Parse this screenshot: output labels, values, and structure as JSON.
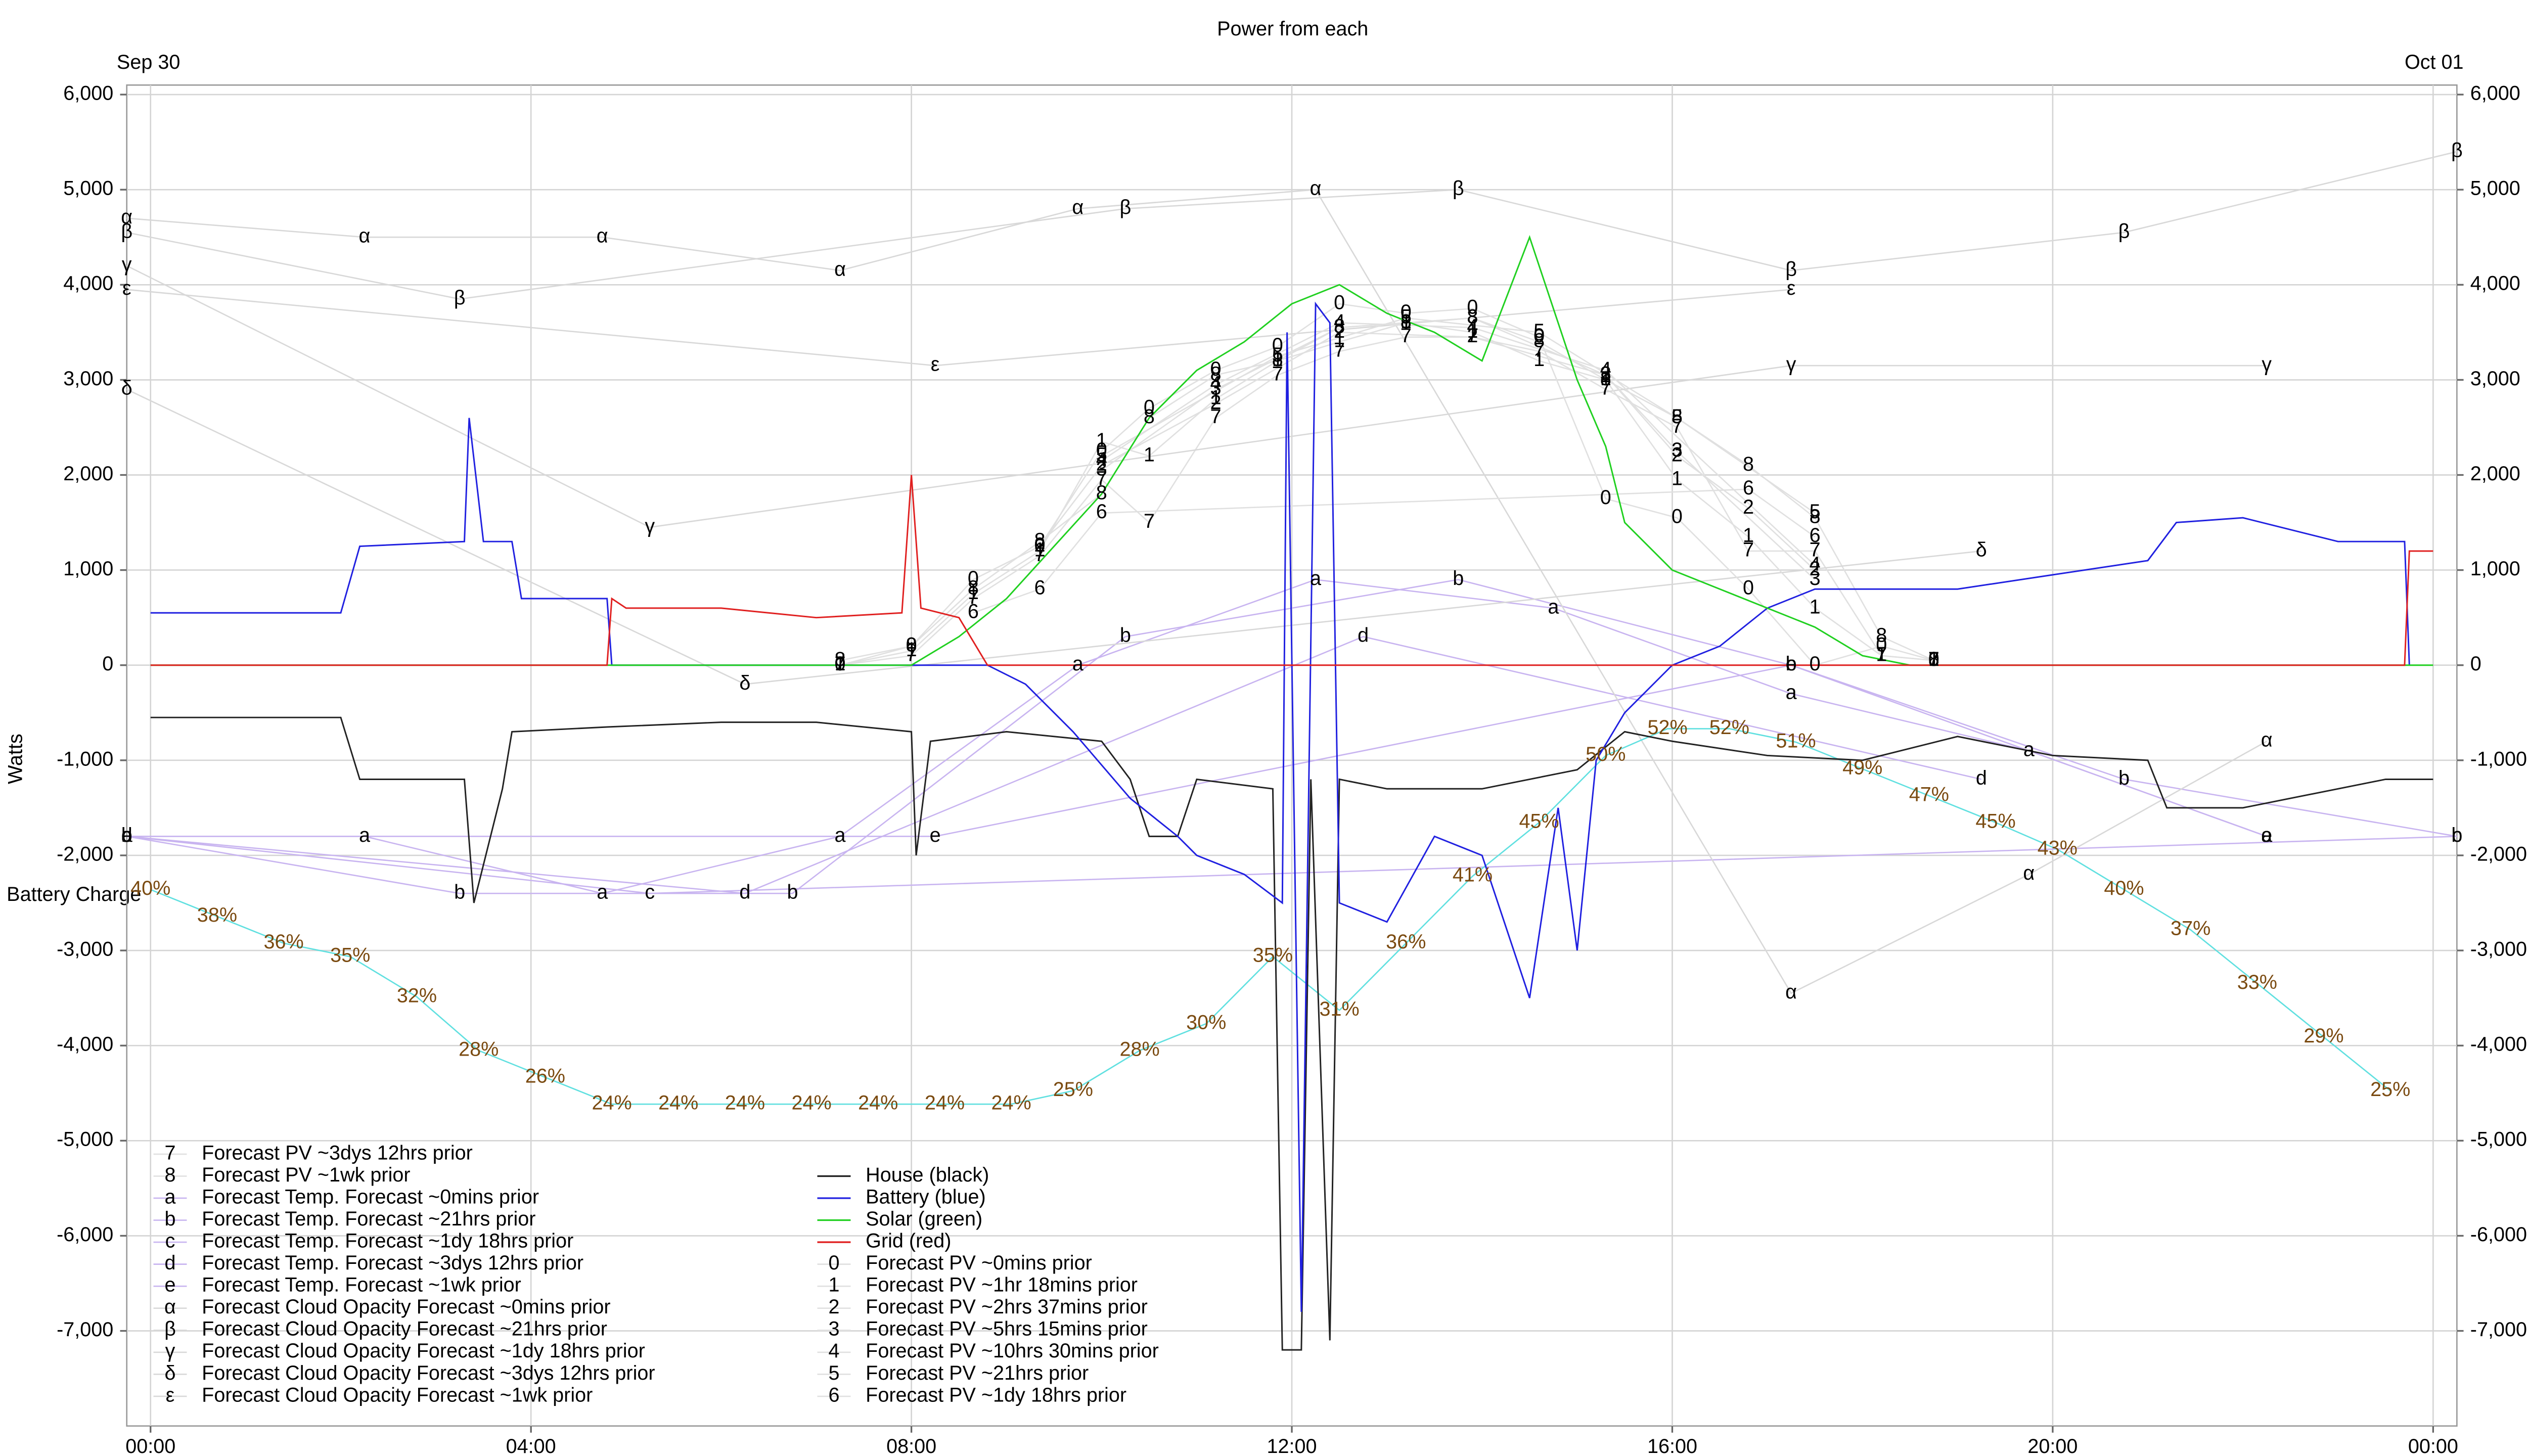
{
  "chart_data": {
    "type": "line",
    "title": "Power from each",
    "date_start": "Sep 30",
    "date_end": "Oct 01",
    "ylabel": "Watts",
    "xlim": [
      -0.25,
      24.25
    ],
    "xticks": [
      {
        "value": 0,
        "label": "00:00"
      },
      {
        "value": 4,
        "label": "04:00"
      },
      {
        "value": 8,
        "label": "08:00"
      },
      {
        "value": 12,
        "label": "12:00"
      },
      {
        "value": 16,
        "label": "16:00"
      },
      {
        "value": 20,
        "label": "20:00"
      },
      {
        "value": 24,
        "label": "00:00"
      }
    ],
    "ylim": [
      -8000,
      6100
    ],
    "yticks": [
      {
        "value": -7000,
        "label": "-7,000"
      },
      {
        "value": -6000,
        "label": "-6,000"
      },
      {
        "value": -5000,
        "label": "-5,000"
      },
      {
        "value": -4000,
        "label": "-4,000"
      },
      {
        "value": -3000,
        "label": "-3,000"
      },
      {
        "value": -2000,
        "label": "-2,000"
      },
      {
        "value": -1000,
        "label": "-1,000"
      },
      0,
      {
        "value": 1000,
        "label": "1,000"
      },
      {
        "value": 2000,
        "label": "2,000"
      },
      {
        "value": 3000,
        "label": "3,000"
      },
      {
        "value": 4000,
        "label": "4,000"
      },
      {
        "value": 5000,
        "label": "5,000"
      },
      {
        "value": 6000,
        "label": "6,000"
      }
    ],
    "grid": true,
    "series": [
      {
        "name": "Forecast PV ~3dys 12hrs prior",
        "marker": "7",
        "color": "#e0e0e0",
        "x": [
          7.25,
          8,
          8.65,
          9.35,
          10,
          10.5,
          11.2,
          11.85,
          12.5,
          13.2,
          13.9,
          14.6,
          15.3,
          16.05,
          16.8,
          17.5,
          18.2,
          18.75
        ],
        "values": [
          0,
          100,
          700,
          1150,
          1950,
          1500,
          2600,
          3050,
          3300,
          3450,
          3450,
          3300,
          2900,
          2500,
          1200,
          1200,
          100,
          50
        ]
      },
      {
        "name": "Forecast PV ~1wk prior",
        "marker": "8",
        "color": "#e0e0e0",
        "x": [
          7.25,
          8,
          8.65,
          9.35,
          10,
          10.5,
          11.2,
          11.85,
          12.5,
          13.2,
          13.9,
          14.6,
          15.3,
          16.05,
          16.8,
          17.5,
          18.2,
          18.75
        ],
        "values": [
          50,
          200,
          800,
          1300,
          1800,
          2600,
          3050,
          3200,
          3550,
          3600,
          3650,
          3400,
          3000,
          2600,
          2100,
          1550,
          300,
          50
        ]
      },
      {
        "name": "Forecast Temp. Forecast ~0mins prior",
        "marker": "a",
        "color": "#c8b4f0",
        "x": [
          -0.25,
          2.25,
          4.75,
          7.25,
          9.75,
          12.25,
          14.75,
          17.25,
          19.75,
          22.25
        ],
        "values": [
          -1800,
          -1800,
          -2400,
          -1800,
          0,
          900,
          600,
          -300,
          -900,
          -1800
        ]
      },
      {
        "name": "Forecast Temp. Forecast ~21hrs prior",
        "marker": "b",
        "color": "#c8b4f0",
        "x": [
          -0.25,
          3.25,
          6.75,
          10.25,
          13.75,
          17.25,
          20.75,
          24.25
        ],
        "values": [
          -1800,
          -2400,
          -2400,
          300,
          900,
          0,
          -1200,
          -1800
        ]
      },
      {
        "name": "Forecast Temp. Forecast ~1dy 18hrs prior",
        "marker": "c",
        "color": "#c8b4f0",
        "x": [
          -0.25,
          5.25,
          24.25
        ],
        "values": [
          -1800,
          -2400,
          -1800
        ]
      },
      {
        "name": "Forecast Temp. Forecast ~3dys 12hrs prior",
        "marker": "d",
        "color": "#c8b4f0",
        "x": [
          -0.25,
          6.25,
          12.75,
          19.25
        ],
        "values": [
          -1800,
          -2400,
          300,
          -1200
        ]
      },
      {
        "name": "Forecast Temp. Forecast ~1wk prior",
        "marker": "e",
        "color": "#c8b4f0",
        "x": [
          -0.25,
          8.25,
          17.25,
          22.25
        ],
        "values": [
          -1800,
          -1800,
          0,
          -1800
        ]
      },
      {
        "name": "Forecast Cloud Opacity Forecast ~0mins prior",
        "marker": "α",
        "color": "#d8d8d8",
        "x": [
          -0.25,
          2.25,
          4.75,
          7.25,
          9.75,
          12.25,
          17.25,
          19.75,
          22.25
        ],
        "values": [
          4700,
          4500,
          4500,
          4150,
          4800,
          5000,
          -3450,
          -2200,
          -800
        ]
      },
      {
        "name": "Forecast Cloud Opacity Forecast ~21hrs prior",
        "marker": "β",
        "color": "#d8d8d8",
        "x": [
          -0.25,
          3.25,
          10.25,
          13.75,
          17.25,
          20.75,
          24.25
        ],
        "values": [
          4550,
          3850,
          4800,
          5000,
          4150,
          4550,
          5400
        ]
      },
      {
        "name": "Forecast Cloud Opacity Forecast ~1dy 18hrs prior",
        "marker": "γ",
        "color": "#d8d8d8",
        "x": [
          -0.25,
          5.25,
          17.25,
          22.25
        ],
        "values": [
          4200,
          1450,
          3150,
          3150
        ]
      },
      {
        "name": "Forecast Cloud Opacity Forecast ~3dys 12hrs prior",
        "marker": "δ",
        "color": "#d8d8d8",
        "x": [
          -0.25,
          6.25,
          19.25
        ],
        "values": [
          2900,
          -200,
          1200
        ]
      },
      {
        "name": "Forecast Cloud Opacity Forecast ~1wk prior",
        "marker": "ε",
        "color": "#d8d8d8",
        "x": [
          -0.25,
          8.25,
          17.25
        ],
        "values": [
          3950,
          3150,
          3950
        ]
      },
      {
        "name": "House (black)",
        "color": "#222222",
        "x": [
          0,
          2,
          2.2,
          3.3,
          3.4,
          3.7,
          3.8,
          4.8,
          6,
          7,
          8,
          8.05,
          8.2,
          9,
          10,
          10.3,
          10.5,
          10.8,
          11,
          11.8,
          11.9,
          12.1,
          12.2,
          12.4,
          12.5,
          13,
          14,
          15,
          15.5,
          16,
          17,
          18,
          19,
          20,
          21,
          21.2,
          22,
          23,
          23.5,
          24
        ],
        "values": [
          -550,
          -550,
          -1200,
          -1200,
          -2500,
          -1300,
          -700,
          -650,
          -600,
          -600,
          -700,
          -2000,
          -800,
          -700,
          -800,
          -1200,
          -1800,
          -1800,
          -1200,
          -1300,
          -7200,
          -7200,
          -1200,
          -7100,
          -1200,
          -1300,
          -1300,
          -1100,
          -700,
          -800,
          -950,
          -1000,
          -750,
          -950,
          -1000,
          -1500,
          -1500,
          -1300,
          -1200,
          -1200
        ]
      },
      {
        "name": "Battery (blue)",
        "color": "#2020e0",
        "x": [
          0,
          2,
          2.2,
          3.3,
          3.35,
          3.5,
          3.8,
          3.9,
          4.8,
          4.85,
          8,
          8.8,
          9.2,
          9.7,
          10.3,
          10.8,
          11,
          11.5,
          11.9,
          11.95,
          12.1,
          12.25,
          12.4,
          12.5,
          13,
          13.5,
          14,
          14.5,
          14.8,
          15,
          15.2,
          15.5,
          16,
          16.5,
          17,
          17.5,
          18,
          19,
          20,
          21,
          21.3,
          22,
          23,
          23.7,
          23.75
        ],
        "values": [
          550,
          550,
          1250,
          1300,
          2600,
          1300,
          1300,
          700,
          700,
          0,
          0,
          0,
          -200,
          -700,
          -1400,
          -1800,
          -2000,
          -2200,
          -2500,
          3500,
          -6800,
          3800,
          3600,
          -2500,
          -2700,
          -1800,
          -2000,
          -3500,
          -1500,
          -3000,
          -1000,
          -500,
          0,
          200,
          600,
          800,
          800,
          800,
          950,
          1100,
          1500,
          1550,
          1300,
          1300,
          0
        ]
      },
      {
        "name": "Solar (green)",
        "color": "#20d020",
        "x": [
          0,
          8,
          8.5,
          9,
          10,
          10.5,
          11,
          11.5,
          12,
          12.5,
          13,
          13.5,
          14,
          14.5,
          15,
          15.3,
          15.5,
          16,
          16.5,
          17,
          17.5,
          18,
          18.5,
          24
        ],
        "values": [
          0,
          0,
          300,
          700,
          1800,
          2600,
          3100,
          3400,
          3800,
          4000,
          3700,
          3500,
          3200,
          4500,
          3000,
          2300,
          1500,
          1000,
          800,
          600,
          400,
          100,
          0,
          0
        ]
      },
      {
        "name": "Grid (red)",
        "color": "#e02020",
        "x": [
          0,
          4.8,
          4.85,
          5,
          6,
          7,
          7.9,
          8,
          8.1,
          8.5,
          8.8,
          23.7,
          23.75,
          24
        ],
        "values": [
          0,
          0,
          700,
          600,
          600,
          500,
          550,
          2000,
          600,
          500,
          0,
          0,
          1200,
          1200
        ]
      },
      {
        "name": "Forecast PV ~0mins prior",
        "marker": "0",
        "color": "#e0e0e0",
        "x": [
          7.25,
          8,
          8.65,
          9.35,
          10,
          10.5,
          11.2,
          11.85,
          12.5,
          13.2,
          13.9,
          14.6,
          15.3,
          16.05,
          16.8,
          17.5,
          18.2,
          18.75
        ],
        "values": [
          0,
          200,
          900,
          1250,
          2250,
          2700,
          3100,
          3350,
          3800,
          3700,
          3750,
          3450,
          1750,
          1550,
          800,
          0,
          200,
          50
        ]
      },
      {
        "name": "Forecast PV ~1hr 18mins prior",
        "marker": "1",
        "color": "#e0e0e0",
        "x": [
          7.25,
          8,
          8.65,
          9.35,
          10,
          10.5,
          11.2,
          11.85,
          12.5,
          13.2,
          13.9,
          14.6,
          15.3,
          16.05,
          16.8,
          17.5,
          18.2,
          18.75
        ],
        "values": [
          0,
          150,
          750,
          1200,
          2350,
          2200,
          2800,
          3200,
          3400,
          3600,
          3500,
          3200,
          3000,
          1950,
          1350,
          600,
          100,
          50
        ]
      },
      {
        "name": "Forecast PV ~2hrs 37mins prior",
        "marker": "2",
        "color": "#e0e0e0",
        "x": [
          9.35,
          10,
          11.2,
          12.5,
          13.9,
          15.3,
          16.05,
          16.8,
          17.5
        ],
        "values": [
          1250,
          2100,
          2750,
          3500,
          3450,
          3050,
          2200,
          1650,
          1000
        ]
      },
      {
        "name": "Forecast PV ~5hrs 15mins prior",
        "marker": "3",
        "color": "#e0e0e0",
        "x": [
          10,
          11.2,
          12.5,
          13.9,
          15.3,
          16.05,
          17.5
        ],
        "values": [
          2050,
          2900,
          3550,
          3650,
          3050,
          2250,
          900
        ]
      },
      {
        "name": "Forecast PV ~10hrs 30mins prior",
        "marker": "4",
        "color": "#e0e0e0",
        "x": [
          10,
          11.2,
          12.5,
          13.9,
          15.3,
          17.5
        ],
        "values": [
          2150,
          2950,
          3600,
          3550,
          3100,
          1050
        ]
      },
      {
        "name": "Forecast PV ~21hrs prior",
        "marker": "5",
        "color": "#e0e0e0",
        "x": [
          10,
          11.85,
          13.2,
          14.6,
          16.05,
          17.5
        ],
        "values": [
          2200,
          3250,
          3650,
          3500,
          2600,
          1600
        ]
      },
      {
        "name": "Forecast PV ~1dy 18hrs prior",
        "marker": "6",
        "color": "#e0e0e0",
        "x": [
          8.65,
          9.35,
          10,
          16.8,
          17.5
        ],
        "values": [
          550,
          800,
          1600,
          1850,
          1350
        ]
      }
    ],
    "battery_charge": {
      "label": "Battery Charge",
      "color": "#60e0e0",
      "label_color": "#7a4a10",
      "y2lim": [
        0,
        100
      ],
      "x": [
        0,
        0.7,
        1.4,
        2.1,
        2.8,
        3.45,
        4.15,
        4.85,
        5.55,
        6.25,
        6.95,
        7.65,
        8.35,
        9.05,
        9.7,
        10.4,
        11.1,
        11.8,
        12.5,
        13.2,
        13.9,
        14.6,
        15.3,
        15.95,
        16.6,
        17.3,
        18,
        18.7,
        19.4,
        20.05,
        20.75,
        21.45,
        22.15,
        22.85,
        23.55
      ],
      "values": [
        40,
        38,
        36,
        35,
        32,
        28,
        26,
        24,
        24,
        24,
        24,
        24,
        24,
        24,
        25,
        28,
        30,
        35,
        31,
        36,
        41,
        45,
        50,
        52,
        52,
        51,
        49,
        47,
        45,
        43,
        40,
        37,
        33,
        29,
        25
      ],
      "value_labels": [
        "40%",
        "38%",
        "36%",
        "35%",
        "32%",
        "28%",
        "26%",
        "24%",
        "24%",
        "24%",
        "24%",
        "24%",
        "24%",
        "24%",
        "25%",
        "28%",
        "30%",
        "35%",
        "31%",
        "36%",
        "41%",
        "45%",
        "50%",
        "52%",
        "52%",
        "51%",
        "49%",
        "47%",
        "45%",
        "43%",
        "40%",
        "37%",
        "33%",
        "29%",
        "25%"
      ]
    }
  }
}
